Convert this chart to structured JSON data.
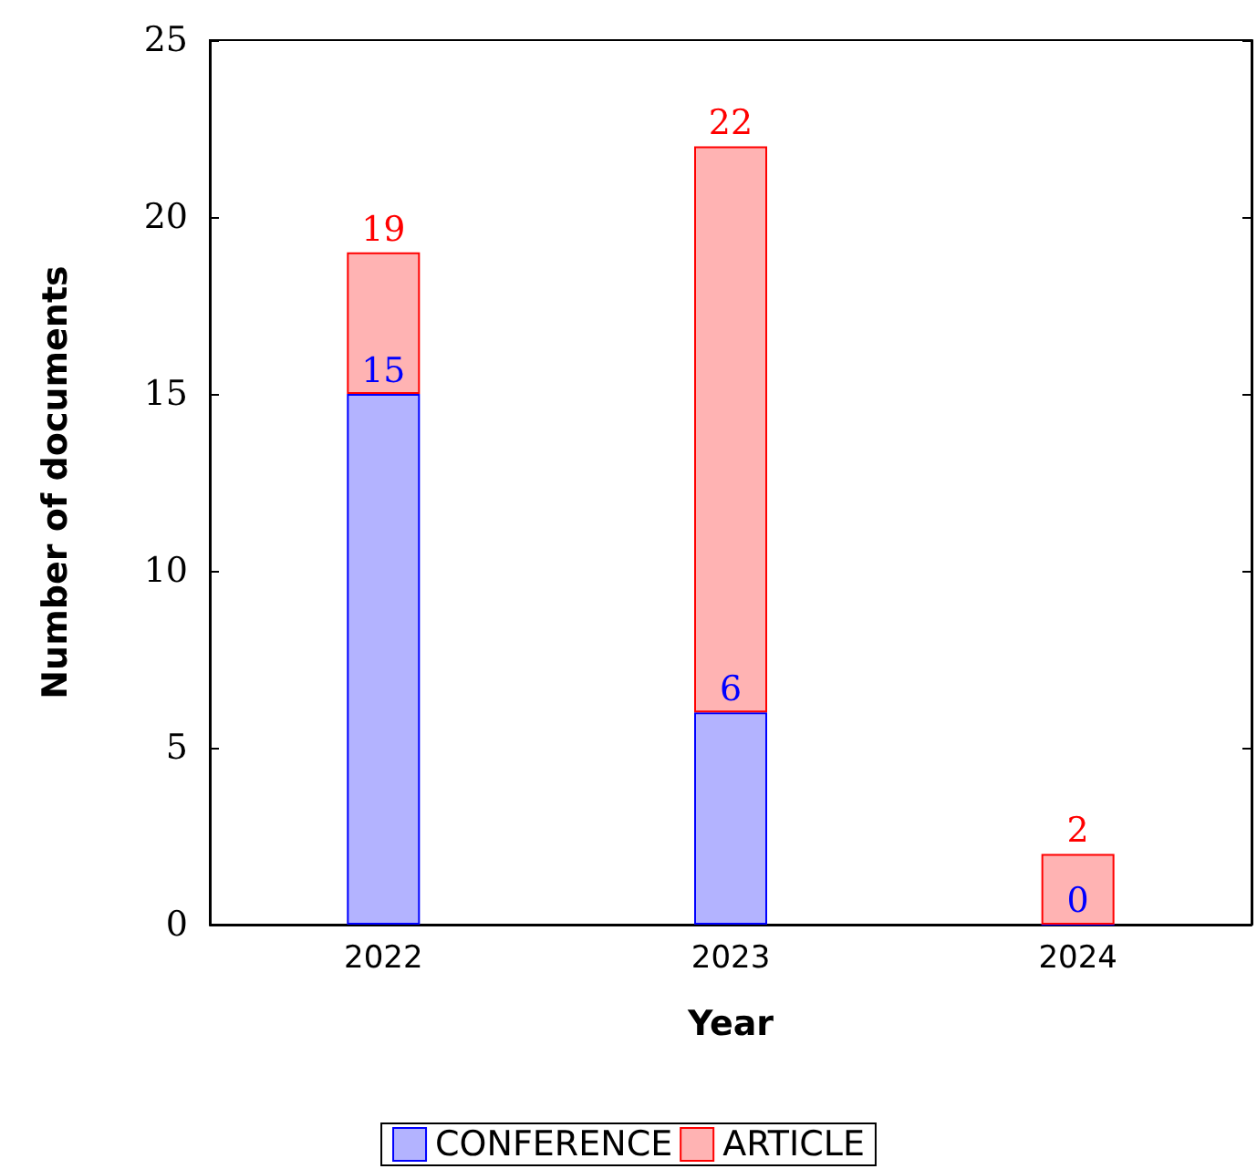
{
  "chart_data": {
    "type": "bar",
    "stacked": true,
    "xlabel": "Year",
    "ylabel": "Number of documents",
    "categories": [
      "2022",
      "2023",
      "2024"
    ],
    "series": [
      {
        "name": "CONFERENCE",
        "color": "#b3b3ff",
        "values": [
          15,
          6,
          0
        ],
        "value_labels": [
          "15",
          "6",
          "0"
        ]
      },
      {
        "name": "ARTICLE",
        "color": "#ffb3b3",
        "values": [
          4,
          16,
          2
        ]
      }
    ],
    "totals": [
      "19",
      "22",
      "2"
    ],
    "ylim": [
      0,
      25
    ],
    "yticks": [
      0,
      5,
      10,
      15,
      20,
      25
    ],
    "grid": false,
    "legend": "bottom"
  }
}
